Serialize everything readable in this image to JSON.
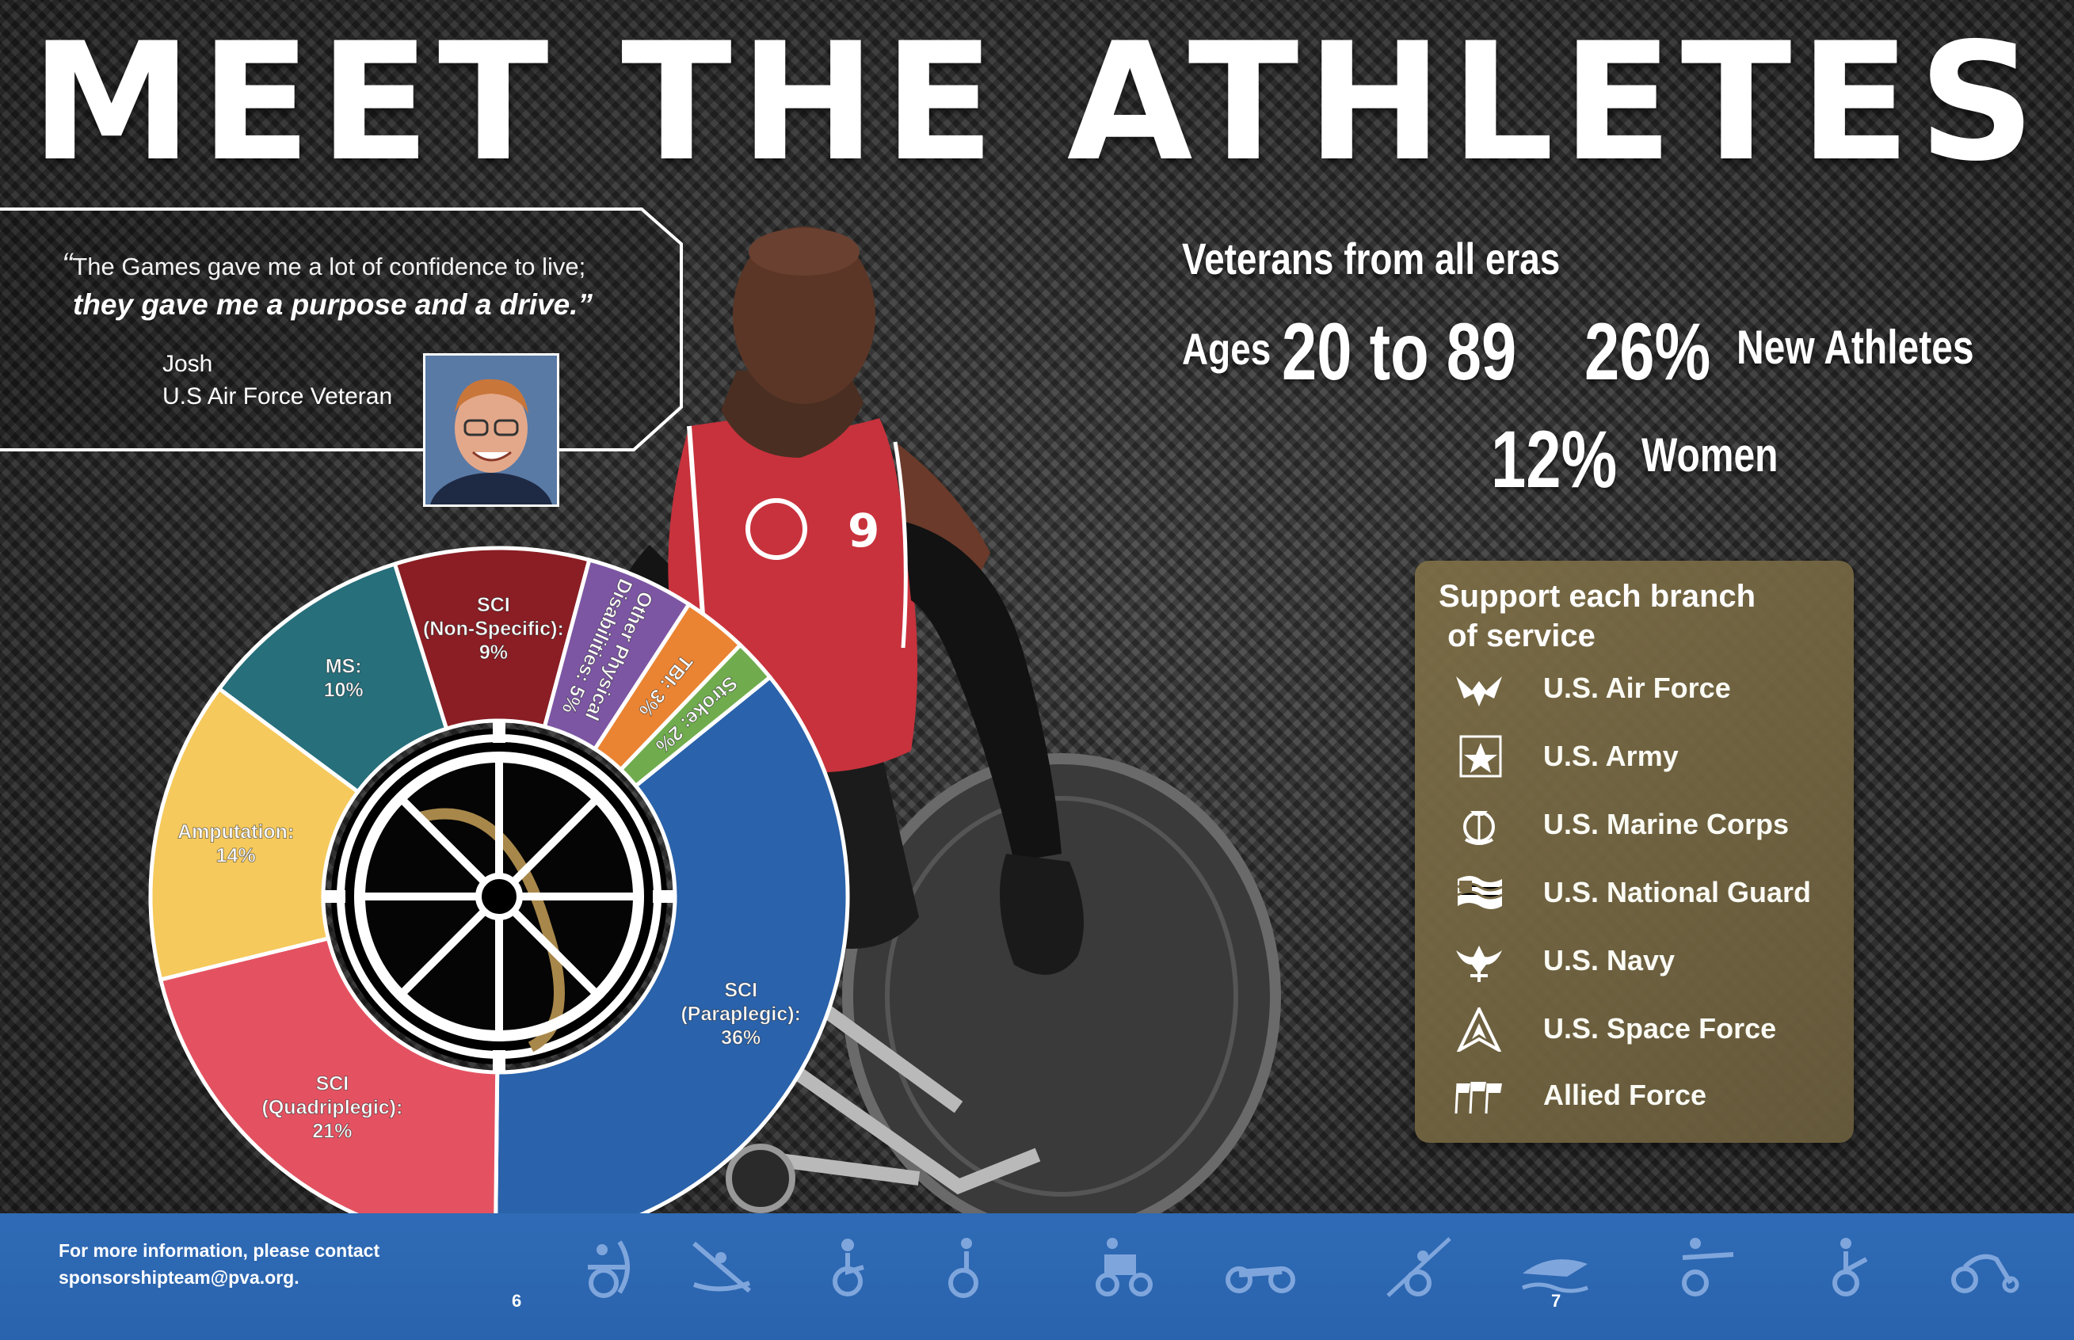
{
  "title": "MEET THE ATHLETES",
  "quote": {
    "open_mark": "“",
    "line1": "The Games gave me a lot of confidence to live;",
    "line2": "they gave me a purpose and a drive.”",
    "name": "Josh",
    "role": "U.S Air Force Veteran"
  },
  "stats": {
    "eras": "Veterans from all eras",
    "ages_label": "Ages",
    "ages_value": "20 to 89",
    "new_pct": "26%",
    "new_label": "New Athletes",
    "women_pct": "12%",
    "women_label": "Women"
  },
  "jersey_number": "9",
  "branches": {
    "title_line1": "Support each branch",
    "title_line2": " of service",
    "items": [
      {
        "label": "U.S. Air Force",
        "icon": "air-force-icon"
      },
      {
        "label": "U.S. Army",
        "icon": "army-star-icon"
      },
      {
        "label": "U.S. Marine Corps",
        "icon": "marine-corps-icon"
      },
      {
        "label": "U.S. National Guard",
        "icon": "flag-icon"
      },
      {
        "label": "U.S. Navy",
        "icon": "navy-eagle-icon"
      },
      {
        "label": "U.S. Space Force",
        "icon": "space-force-delta-icon"
      },
      {
        "label": "Allied Force",
        "icon": "allied-flags-icon"
      }
    ]
  },
  "chart_data": {
    "type": "pie",
    "title": "",
    "series": [
      {
        "label": "SCI (Paraplegic):",
        "value": 36,
        "color": "#2a62ab"
      },
      {
        "label": "SCI (Quadriplegic):",
        "value": 21,
        "color": "#e45261"
      },
      {
        "label": "Amputation:",
        "value": 14,
        "color": "#f5c95c"
      },
      {
        "label": "MS:",
        "value": 10,
        "color": "#266f7b"
      },
      {
        "label": "SCI (Non-Specific):",
        "value": 9,
        "color": "#8a1e24"
      },
      {
        "label": "Other Physical Disabilities:",
        "value": 5,
        "color": "#7c56a3"
      },
      {
        "label": "TBI:",
        "value": 3,
        "color": "#ea8433"
      },
      {
        "label": "Stroke:",
        "value": 2,
        "color": "#70ac4e"
      }
    ],
    "slice_text": [
      [
        "SCI",
        "(Paraplegic):",
        "36%"
      ],
      [
        "SCI",
        "(Quadriplegic):",
        "21%"
      ],
      [
        "Amputation:",
        "14%"
      ],
      [
        "MS:",
        "10%"
      ],
      [
        "SCI",
        "(Non-Specific):",
        "9%"
      ],
      [
        "Other Physical",
        "Disabilities: 5%"
      ],
      [
        "TBI: 3%"
      ],
      [
        "Stroke: 2%"
      ]
    ]
  },
  "footer": {
    "contact_line1": "For more information, please contact",
    "contact_line2": "sponsorshipteam@pva.org.",
    "page_left": "6",
    "page_right": "7",
    "sport_icons": [
      "archery-icon",
      "kayak-icon",
      "basketball-icon",
      "bowling-icon",
      "power-soccer-icon",
      "handcycle-icon",
      "javelin-icon",
      "swimming-icon",
      "shooting-icon",
      "table-tennis-icon",
      "racing-icon"
    ]
  },
  "colors": {
    "footer_blue": "#2a63ad",
    "branch_box": "#7a6a45"
  }
}
